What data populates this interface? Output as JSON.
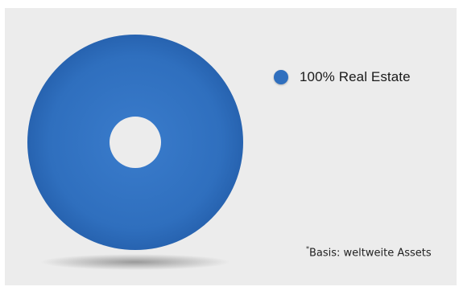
{
  "colors": {
    "background": "#ececec",
    "series": "#2f6fbe",
    "series_dark": "#1f58a3"
  },
  "chart_data": {
    "type": "pie",
    "style": "donut",
    "categories": [
      "Real Estate"
    ],
    "values": [
      100
    ],
    "legend": [
      {
        "label": "100% Real Estate",
        "color": "#2f6fbe"
      }
    ],
    "legend_placement": "right",
    "footnote_marker": "*",
    "footnote": "Basis: weltweite Assets"
  }
}
